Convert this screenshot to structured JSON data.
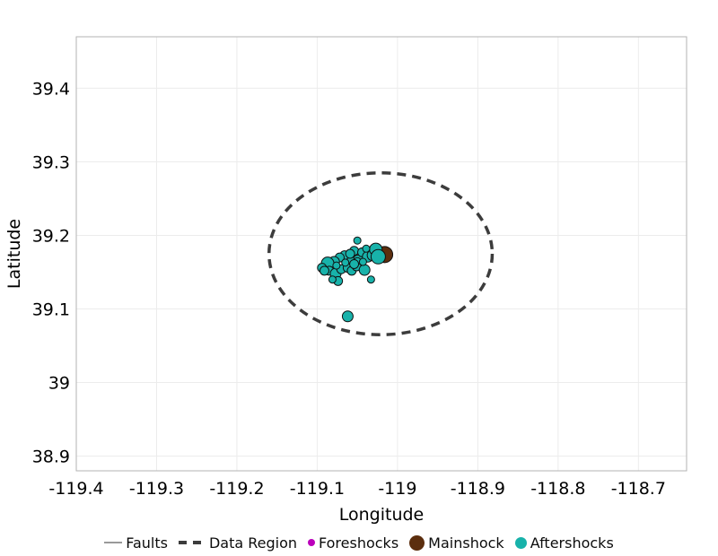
{
  "chart_data": {
    "type": "scatter",
    "title": "",
    "xlabel": "Longitude",
    "ylabel": "Latitude",
    "xlim": [
      -119.4,
      -118.64
    ],
    "ylim": [
      38.88,
      39.47
    ],
    "xticks": [
      -119.4,
      -119.3,
      -119.2,
      -119.1,
      -119.0,
      -118.9,
      -118.8,
      -118.7
    ],
    "xtick_labels": [
      "-119.4",
      "-119.3",
      "-119.2",
      "-119.1",
      "-119",
      "-118.9",
      "-118.8",
      "-118.7"
    ],
    "yticks": [
      38.9,
      39.0,
      39.1,
      39.2,
      39.3,
      39.4
    ],
    "ytick_labels": [
      "38.9",
      "39",
      "39.1",
      "39.2",
      "39.3",
      "39.4"
    ],
    "grid": true,
    "colors": {
      "grid": "#ececec",
      "spine": "#b3b3b3",
      "text": "#000000",
      "faults": "#999999",
      "data_region": "#3c3c3c",
      "foreshocks": "#bb00bb",
      "mainshock": "#5c2e0e",
      "aftershocks": "#18b2aa",
      "marker_stroke": "#101010"
    },
    "data_region": {
      "shape": "ellipse",
      "center_lon": -119.021,
      "center_lat": 39.175,
      "rx_lon": 0.139,
      "ry_lat": 0.11,
      "line_style": "dashed",
      "stroke_width": 3.5,
      "dash_pattern": "10 7"
    },
    "series": [
      {
        "name": "Faults",
        "kind": "line",
        "color_key": "faults",
        "points": []
      },
      {
        "name": "Foreshocks",
        "kind": "scatter",
        "color_key": "foreshocks",
        "points": []
      },
      {
        "name": "Mainshock",
        "kind": "scatter",
        "color_key": "mainshock",
        "points": [
          [
            -119.016,
            39.174,
            9
          ]
        ]
      },
      {
        "name": "Aftershocks",
        "kind": "scatter",
        "color_key": "aftershocks",
        "points": [
          [
            -119.05,
            39.193,
            4
          ],
          [
            -119.054,
            39.179,
            5
          ],
          [
            -119.049,
            39.166,
            6
          ],
          [
            -119.061,
            39.168,
            6
          ],
          [
            -119.066,
            39.173,
            5
          ],
          [
            -119.072,
            39.17,
            5
          ],
          [
            -119.079,
            39.164,
            6
          ],
          [
            -119.087,
            39.162,
            7
          ],
          [
            -119.094,
            39.156,
            5
          ],
          [
            -119.085,
            39.152,
            5
          ],
          [
            -119.077,
            39.148,
            6
          ],
          [
            -119.07,
            39.154,
            5
          ],
          [
            -119.062,
            39.156,
            5
          ],
          [
            -119.057,
            39.152,
            5
          ],
          [
            -119.074,
            39.138,
            5
          ],
          [
            -119.081,
            39.14,
            4
          ],
          [
            -119.051,
            39.158,
            5
          ],
          [
            -119.044,
            39.177,
            5
          ],
          [
            -119.037,
            39.171,
            6
          ],
          [
            -119.031,
            39.173,
            6
          ],
          [
            -119.027,
            39.181,
            7
          ],
          [
            -119.024,
            39.171,
            8
          ],
          [
            -119.05,
            39.165,
            4
          ],
          [
            -119.054,
            39.161,
            5
          ],
          [
            -119.041,
            39.153,
            6
          ],
          [
            -119.033,
            39.14,
            4
          ],
          [
            -119.062,
            39.09,
            6
          ],
          [
            -119.065,
            39.163,
            4
          ],
          [
            -119.059,
            39.175,
            5
          ],
          [
            -119.076,
            39.159,
            4
          ],
          [
            -119.091,
            39.152,
            5
          ],
          [
            -119.043,
            39.164,
            4
          ],
          [
            -119.039,
            39.182,
            4
          ]
        ]
      }
    ],
    "legend": {
      "position": "bottom",
      "items": [
        {
          "label": "Faults",
          "marker": "line",
          "color_key": "faults"
        },
        {
          "label": "Data Region",
          "marker": "dashed-line",
          "color_key": "data_region"
        },
        {
          "label": "Foreshocks",
          "marker": "dot-small",
          "color_key": "foreshocks"
        },
        {
          "label": "Mainshock",
          "marker": "dot-large",
          "color_key": "mainshock"
        },
        {
          "label": "Aftershocks",
          "marker": "dot-medium",
          "color_key": "aftershocks"
        }
      ]
    }
  }
}
